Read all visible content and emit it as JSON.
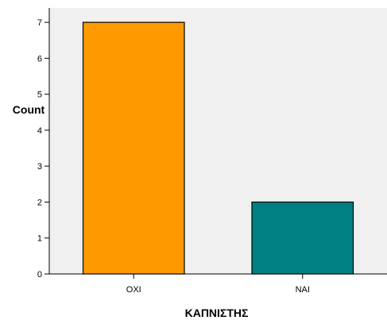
{
  "chart_data": {
    "type": "bar",
    "categories": [
      "ΟΧΙ",
      "ΝΑΙ"
    ],
    "values": [
      7,
      2
    ],
    "colors": [
      "#ff9900",
      "#008080"
    ],
    "plot_background": "#f0f0f0",
    "title": "",
    "xlabel": "ΚΑΠΝΙΣΤΗΣ",
    "ylabel": "Count",
    "ylim": [
      0,
      7.4
    ],
    "yticks": [
      0,
      1,
      2,
      3,
      4,
      5,
      6,
      7
    ],
    "grid": false,
    "legend": "none"
  }
}
